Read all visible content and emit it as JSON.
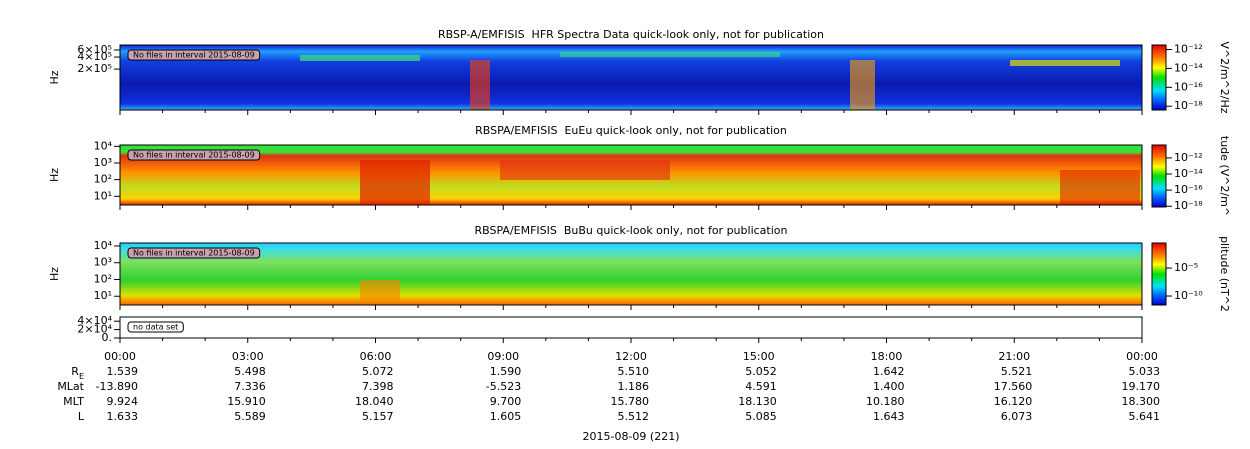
{
  "panels": [
    {
      "title": "RBSP-A/EMFISIS  HFR Spectra Data quick-look only, not for publication",
      "ylabel": "Hz",
      "log": true,
      "ylim": [
        19000,
        800000
      ],
      "yticks": [
        {
          "value": 600000,
          "label": "6×10⁵"
        },
        {
          "value": 400000,
          "label": "4×10⁵"
        },
        {
          "value": 200000,
          "label": "2×10⁵"
        }
      ],
      "note": "No files in interval 2015-08-09",
      "colorbar": {
        "label": "V^2/m^2/Hz",
        "clim": [
          4e-19,
          3e-12
        ],
        "ticks": [
          {
            "value": 1e-12,
            "label": "10⁻¹²"
          },
          {
            "value": 1e-14,
            "label": "10⁻¹⁴"
          },
          {
            "value": 1e-16,
            "label": "10⁻¹⁶"
          },
          {
            "value": 1e-18,
            "label": "10⁻¹⁸"
          }
        ]
      }
    },
    {
      "title": "RBSPA/EMFISIS  EuEu quick-look only, not for publication",
      "ylabel": "Hz",
      "log": true,
      "ylim": [
        3,
        12000
      ],
      "yticks": [
        {
          "value": 10000,
          "label": "10⁴"
        },
        {
          "value": 1000,
          "label": "10³"
        },
        {
          "value": 100,
          "label": "10²"
        },
        {
          "value": 10,
          "label": "10¹"
        }
      ],
      "note": "No files in interval 2015-08-09",
      "colorbar": {
        "label": "tude (V^2/m^",
        "clim": [
          8e-19,
          4e-11
        ],
        "ticks": [
          {
            "value": 1e-12,
            "label": "10⁻¹²"
          },
          {
            "value": 1e-14,
            "label": "10⁻¹⁴"
          },
          {
            "value": 1e-16,
            "label": "10⁻¹⁶"
          },
          {
            "value": 1e-18,
            "label": "10⁻¹⁸"
          }
        ]
      }
    },
    {
      "title": "RBSPA/EMFISIS  BuBu quick-look only, not for publication",
      "ylabel": "Hz",
      "log": true,
      "ylim": [
        3,
        15000
      ],
      "yticks": [
        {
          "value": 10000,
          "label": "10⁴"
        },
        {
          "value": 1000,
          "label": "10³"
        },
        {
          "value": 100,
          "label": "10²"
        },
        {
          "value": 10,
          "label": "10¹"
        }
      ],
      "note": "No files in interval 2015-08-09",
      "colorbar": {
        "label": "plitude (nT^2",
        "clim": [
          2.5e-12,
          0.3
        ],
        "ticks": [
          {
            "value": 1e-05,
            "label": "10⁻⁵"
          },
          {
            "value": 1e-10,
            "label": "10⁻¹⁰"
          }
        ]
      }
    },
    {
      "log": false,
      "ylim": [
        0,
        50000
      ],
      "yticks": [
        {
          "value": 40000,
          "label": "4×10⁴"
        },
        {
          "value": 20000,
          "label": "2×10⁴"
        },
        {
          "value": 0,
          "label": "0."
        }
      ],
      "note": "no data set"
    }
  ],
  "time_ticks": [
    "00:00",
    "03:00",
    "06:00",
    "09:00",
    "12:00",
    "15:00",
    "18:00",
    "21:00",
    "00:00"
  ],
  "ephemeris": [
    {
      "label": "R",
      "subscript": "E",
      "values": [
        "1.539",
        "5.498",
        "5.072",
        "1.590",
        "5.510",
        "5.052",
        "1.642",
        "5.521",
        "5.033"
      ]
    },
    {
      "label": "MLat",
      "values": [
        "-13.890",
        "7.336",
        "7.398",
        "-5.523",
        "1.186",
        "4.591",
        "1.400",
        "17.560",
        "19.170"
      ]
    },
    {
      "label": "MLT",
      "values": [
        "9.924",
        "15.910",
        "18.040",
        "9.700",
        "15.780",
        "18.130",
        "10.180",
        "16.120",
        "18.300"
      ]
    },
    {
      "label": "L",
      "values": [
        "1.633",
        "5.589",
        "5.157",
        "1.605",
        "5.512",
        "5.085",
        "1.643",
        "6.073",
        "5.641"
      ]
    }
  ],
  "date_label": "2015-08-09 (221)"
}
